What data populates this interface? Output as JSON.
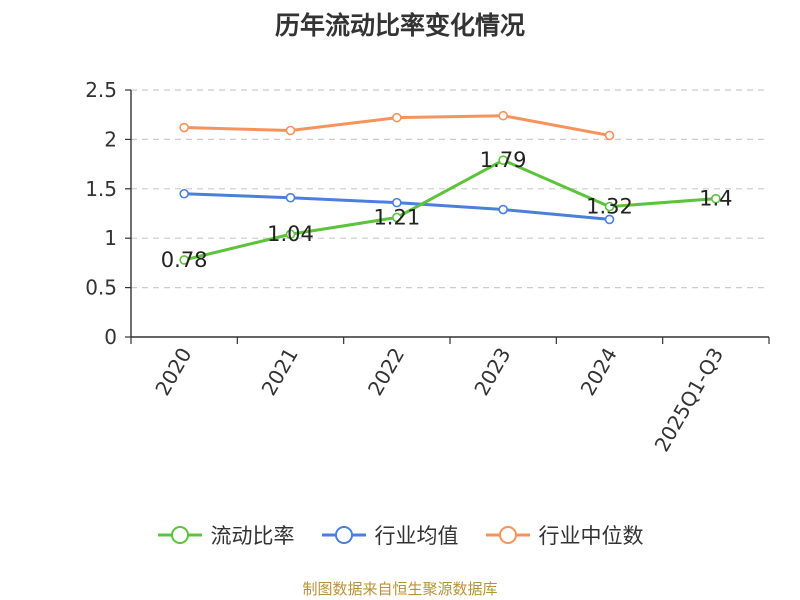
{
  "chart_data": {
    "type": "line",
    "title": "历年流动比率变化情况",
    "categories": [
      "2020",
      "2021",
      "2022",
      "2023",
      "2024",
      "2025Q1-Q3"
    ],
    "ylim": [
      0,
      2.5
    ],
    "yticks": [
      "0",
      "0.5",
      "1",
      "1.5",
      "2",
      "2.5"
    ],
    "grid": true,
    "legend_position": "bottom",
    "series": [
      {
        "name": "流动比率",
        "color": "#5cc33a",
        "values": [
          0.78,
          1.04,
          1.21,
          1.79,
          1.32,
          1.4
        ],
        "labels": [
          "0.78",
          "1.04",
          "1.21",
          "1.79",
          "1.32",
          "1.4"
        ]
      },
      {
        "name": "行业均值",
        "color": "#4a7fdc",
        "values": [
          1.45,
          1.41,
          1.36,
          1.29,
          1.19,
          null
        ]
      },
      {
        "name": "行业中位数",
        "color": "#f7935a",
        "values": [
          2.12,
          2.09,
          2.22,
          2.24,
          2.04,
          null
        ]
      }
    ]
  },
  "source": "制图数据来自恒生聚源数据库"
}
